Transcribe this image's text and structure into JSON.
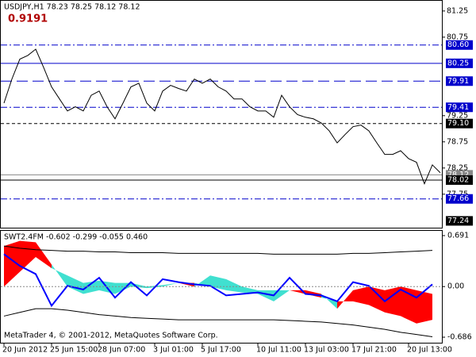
{
  "chart_data": [
    {
      "type": "line",
      "title": "USDJPY,H1  78.23 78.25 78.12 78.12",
      "annotation": "0.9191",
      "categories": [
        "20 Jun 2012",
        null,
        null,
        null,
        null,
        null,
        "25 Jun 15:00",
        null,
        null,
        null,
        null,
        null,
        "28 Jun 07:00",
        null,
        null,
        null,
        null,
        null,
        null,
        "3 Jul 01:00",
        null,
        null,
        null,
        null,
        null,
        "5 Jul 17:00",
        null,
        null,
        null,
        null,
        null,
        null,
        "10 Jul 11:00",
        null,
        null,
        null,
        null,
        null,
        "13 Jul 03:00",
        null,
        null,
        null,
        null,
        null,
        "17 Jul 21:00",
        null,
        null,
        null,
        null,
        null,
        null,
        "20 Jul 13:00",
        null,
        null,
        null,
        null
      ],
      "series": [
        {
          "color": "#000000",
          "values": [
            79.49,
            79.95,
            80.33,
            80.4,
            80.52,
            80.17,
            79.8,
            79.57,
            79.34,
            79.42,
            79.34,
            79.64,
            79.72,
            79.42,
            79.19,
            79.49,
            79.8,
            79.87,
            79.49,
            79.34,
            79.72,
            79.83,
            79.77,
            79.72,
            79.95,
            79.87,
            79.95,
            79.8,
            79.72,
            79.57,
            79.57,
            79.42,
            79.34,
            79.34,
            79.22,
            79.64,
            79.42,
            79.27,
            79.22,
            79.19,
            79.11,
            78.96,
            78.73,
            78.89,
            79.04,
            79.07,
            78.96,
            78.73,
            78.51,
            78.51,
            78.58,
            78.43,
            78.36,
            77.95,
            78.31,
            78.16
          ]
        }
      ],
      "ylim": [
        77.11,
        81.46
      ],
      "yticks": [
        81.25,
        80.75,
        79.25,
        78.75,
        78.25,
        77.75
      ],
      "levels": [
        {
          "value": 80.6,
          "label": "80.60",
          "style": "dashdot",
          "color": "#0000cc"
        },
        {
          "value": 80.25,
          "label": "80.25",
          "style": "solid",
          "color": "#0000cc"
        },
        {
          "value": 79.91,
          "label": "79.91",
          "style": "longdash",
          "color": "#0000cc"
        },
        {
          "value": 79.41,
          "label": "79.41",
          "style": "dashdot",
          "color": "#0000cc"
        },
        {
          "value": 79.1,
          "label": "79.10",
          "style": "dashed",
          "color": "#000000"
        },
        {
          "value": 78.12,
          "label": "78.12",
          "style": "solid",
          "color": "#888888"
        },
        {
          "value": 78.02,
          "label": "78.02",
          "style": "solid",
          "color": "#000000"
        },
        {
          "value": 77.66,
          "label": "77.66",
          "style": "dashdot",
          "color": "#0000cc"
        },
        {
          "value": 77.24,
          "label": "77.24",
          "style": "none",
          "color": "#000000"
        }
      ]
    },
    {
      "type": "band",
      "title": "SWT2.4FM -0.602 -0.299 -0.055 0.460",
      "annotation": "MetaTrader 4, © 2001-2012, MetaQuotes Software Corp.",
      "x": [
        0,
        2,
        4,
        6,
        8,
        10,
        12,
        14,
        16,
        18,
        20,
        22,
        24,
        26,
        28,
        30,
        32,
        34,
        36,
        38,
        40,
        42,
        44,
        46,
        48,
        50,
        52,
        54
      ],
      "series": [
        {
          "color": "#0000ff",
          "values": [
            0.44,
            0.28,
            0.17,
            -0.26,
            0.01,
            -0.04,
            0.12,
            -0.15,
            0.06,
            -0.12,
            0.1,
            0.06,
            0.03,
            0.01,
            -0.12,
            -0.1,
            -0.08,
            -0.12,
            0.12,
            -0.1,
            -0.12,
            -0.2,
            0.06,
            0.01,
            -0.2,
            -0.04,
            -0.15,
            0.03
          ]
        },
        {
          "color": "#ff0000",
          "values": [
            0.55,
            0.62,
            0.6,
            0.3,
            0.0,
            -0.1,
            -0.05,
            -0.1,
            0.0,
            -0.02,
            0.0,
            0.05,
            0.05,
            0.0,
            -0.05,
            -0.08,
            -0.1,
            -0.2,
            -0.05,
            -0.05,
            -0.1,
            -0.3,
            -0.05,
            0.0,
            -0.05,
            0.0,
            -0.05,
            -0.1
          ]
        },
        {
          "color": "#40e0d0",
          "values": [
            0.0,
            0.2,
            0.4,
            0.25,
            0.15,
            0.05,
            0.08,
            0.05,
            0.05,
            0.0,
            0.02,
            0.05,
            0.0,
            0.15,
            0.1,
            0.0,
            -0.05,
            -0.05,
            -0.05,
            -0.1,
            -0.15,
            -0.2,
            -0.2,
            -0.25,
            -0.35,
            -0.4,
            -0.5,
            -0.45
          ]
        },
        {
          "color": "#000000",
          "values": [
            0.55,
            0.52,
            0.5,
            0.49,
            0.48,
            0.48,
            0.47,
            0.47,
            0.46,
            0.46,
            0.46,
            0.45,
            0.45,
            0.45,
            0.45,
            0.45,
            0.45,
            0.44,
            0.44,
            0.44,
            0.44,
            0.44,
            0.45,
            0.45,
            0.46,
            0.47,
            0.48,
            0.49
          ]
        },
        {
          "color": "#000000",
          "values": [
            -0.4,
            -0.35,
            -0.3,
            -0.3,
            -0.32,
            -0.35,
            -0.38,
            -0.4,
            -0.42,
            -0.43,
            -0.44,
            -0.45,
            -0.45,
            -0.45,
            -0.45,
            -0.45,
            -0.45,
            -0.45,
            -0.46,
            -0.47,
            -0.48,
            -0.5,
            -0.52,
            -0.55,
            -0.58,
            -0.62,
            -0.65,
            -0.68
          ]
        }
      ],
      "ylim": [
        -0.761,
        0.766
      ],
      "yticks": [
        0.691,
        {
          "value": 0,
          "label": "0.00"
        },
        -0.686
      ]
    }
  ]
}
